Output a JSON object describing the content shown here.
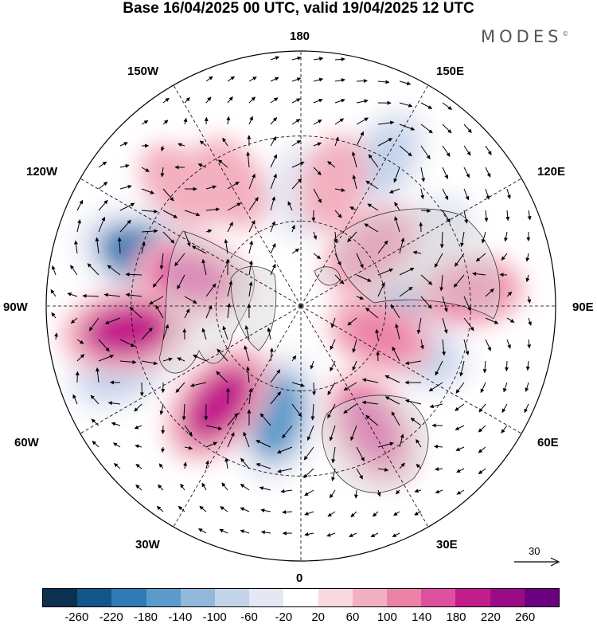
{
  "title": "Base 16/04/2025 00 UTC, valid 19/04/2025 12 UTC",
  "brand": "MODES",
  "brand_mark": "©",
  "longitude_labels": {
    "top": "180",
    "top_left": "150W",
    "top_right": "150E",
    "upper_left": "120W",
    "upper_right": "120E",
    "left": "90W",
    "right": "90E",
    "lower_left": "60W",
    "lower_right": "60E",
    "bottom_left": "30W",
    "bottom_right": "30E",
    "bottom": "0"
  },
  "vector_reference": {
    "label": "30"
  },
  "colorbar": {
    "ticks": [
      "-260",
      "-220",
      "-180",
      "-140",
      "-100",
      "-60",
      "-20",
      "20",
      "60",
      "100",
      "140",
      "180",
      "220",
      "260"
    ],
    "colors": [
      "#0b3050",
      "#14568a",
      "#2e7bb6",
      "#5a9bcb",
      "#93b8dc",
      "#c2d3ea",
      "#e5e7f3",
      "#ffffff",
      "#f9d9de",
      "#f3b0c0",
      "#ec82a8",
      "#de4fa0",
      "#c31d8c",
      "#9c0b86",
      "#6b0080"
    ]
  },
  "anomaly_features": [
    {
      "sign": "negative",
      "level": -220,
      "lon": -108,
      "lat": 32
    },
    {
      "sign": "negative",
      "level": -100,
      "lon": -70,
      "lat": 22
    },
    {
      "sign": "negative",
      "level": -180,
      "lon": -12,
      "lat": 50
    },
    {
      "sign": "negative",
      "level": -140,
      "lon": 88,
      "lat": 52
    },
    {
      "sign": "negative",
      "level": -100,
      "lon": 68,
      "lat": 45
    },
    {
      "sign": "negative",
      "level": -60,
      "lon": 180,
      "lat": 50
    },
    {
      "sign": "negative",
      "level": -100,
      "lon": 150,
      "lat": 30
    },
    {
      "sign": "negative",
      "level": -60,
      "lon": 120,
      "lat": 38
    },
    {
      "sign": "positive",
      "level": 180,
      "lon": -82,
      "lat": 28
    },
    {
      "sign": "positive",
      "level": 180,
      "lon": -40,
      "lat": 45
    },
    {
      "sign": "positive",
      "level": 140,
      "lon": -105,
      "lat": 50
    },
    {
      "sign": "positive",
      "level": 140,
      "lon": 30,
      "lat": 40
    },
    {
      "sign": "positive",
      "level": 100,
      "lon": 70,
      "lat": 60
    },
    {
      "sign": "positive",
      "level": 100,
      "lon": 95,
      "lat": 30
    },
    {
      "sign": "positive",
      "level": 100,
      "lon": 128,
      "lat": 58
    },
    {
      "sign": "positive",
      "level": 60,
      "lon": -150,
      "lat": 40
    },
    {
      "sign": "positive",
      "level": 60,
      "lon": -135,
      "lat": 30
    },
    {
      "sign": "positive",
      "level": 60,
      "lon": 165,
      "lat": 45
    }
  ]
}
